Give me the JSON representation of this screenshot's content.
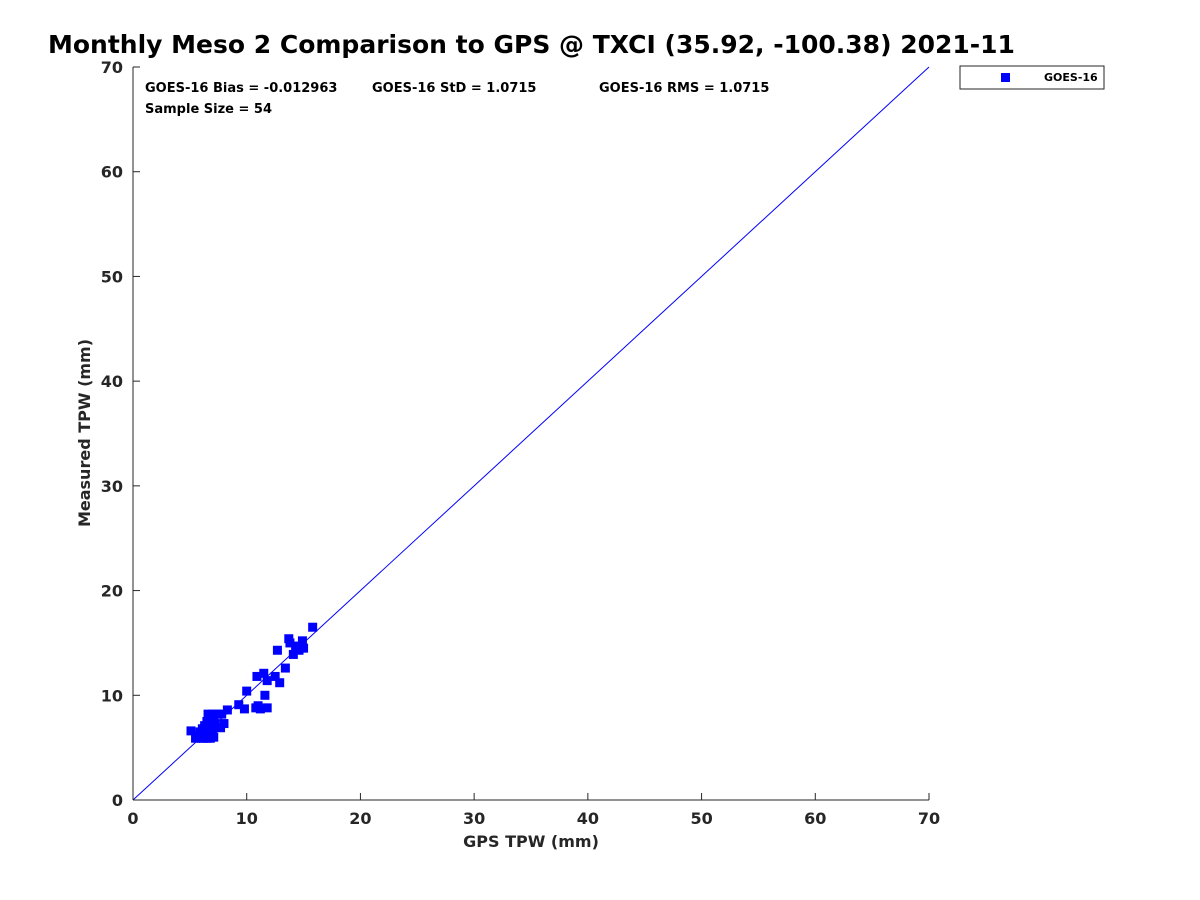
{
  "chart_data": {
    "type": "scatter",
    "title": "Monthly Meso 2 Comparison to GPS @ TXCI (35.92, -100.38) 2021-11",
    "xlabel": "GPS TPW (mm)",
    "ylabel": "Measured TPW (mm)",
    "xlim": [
      0,
      70
    ],
    "ylim": [
      0,
      70
    ],
    "xticks": [
      0,
      10,
      20,
      30,
      40,
      50,
      60,
      70
    ],
    "yticks": [
      0,
      10,
      20,
      30,
      40,
      50,
      60,
      70
    ],
    "grid": false,
    "legend_position": "outside-top-right",
    "reference_line": {
      "x": [
        0,
        70
      ],
      "y": [
        0,
        70
      ],
      "color": "#0000ff"
    },
    "annotations": {
      "bias": "GOES-16 Bias = -0.012963",
      "std": "GOES-16 StD = 1.0715",
      "rms": "GOES-16 RMS = 1.0715",
      "sample_size": "Sample Size = 54"
    },
    "series": [
      {
        "name": "GOES-16",
        "color": "#0000ff",
        "marker": "square",
        "points": [
          [
            5.1,
            6.6
          ],
          [
            5.5,
            5.9
          ],
          [
            5.7,
            6.2
          ],
          [
            5.9,
            6.5
          ],
          [
            6.0,
            5.9
          ],
          [
            6.1,
            6.8
          ],
          [
            6.2,
            6.1
          ],
          [
            6.3,
            7.1
          ],
          [
            6.4,
            6.4
          ],
          [
            6.5,
            5.9
          ],
          [
            6.5,
            7.5
          ],
          [
            6.6,
            6.7
          ],
          [
            6.6,
            8.2
          ],
          [
            6.7,
            6.2
          ],
          [
            6.8,
            7.0
          ],
          [
            6.8,
            5.9
          ],
          [
            6.9,
            7.8
          ],
          [
            7.0,
            6.5
          ],
          [
            7.0,
            8.2
          ],
          [
            7.1,
            6.0
          ],
          [
            7.2,
            7.3
          ],
          [
            7.4,
            8.2
          ],
          [
            7.7,
            6.9
          ],
          [
            7.8,
            8.2
          ],
          [
            8.0,
            7.3
          ],
          [
            8.3,
            8.6
          ],
          [
            9.3,
            9.1
          ],
          [
            9.8,
            8.7
          ],
          [
            10.0,
            10.4
          ],
          [
            10.8,
            8.8
          ],
          [
            10.9,
            11.8
          ],
          [
            11.0,
            9.0
          ],
          [
            11.2,
            8.7
          ],
          [
            11.5,
            12.1
          ],
          [
            11.6,
            10.0
          ],
          [
            11.8,
            8.8
          ],
          [
            11.8,
            11.4
          ],
          [
            12.5,
            11.8
          ],
          [
            12.7,
            14.3
          ],
          [
            12.9,
            11.2
          ],
          [
            13.4,
            12.6
          ],
          [
            13.7,
            15.4
          ],
          [
            13.8,
            15.0
          ],
          [
            14.1,
            13.9
          ],
          [
            14.3,
            14.7
          ],
          [
            14.6,
            14.3
          ],
          [
            14.8,
            14.6
          ],
          [
            14.9,
            15.2
          ],
          [
            15.0,
            14.5
          ],
          [
            15.8,
            16.5
          ],
          [
            6.4,
            6.9
          ],
          [
            6.9,
            6.3
          ],
          [
            7.1,
            7.6
          ],
          [
            6.2,
            5.9
          ]
        ]
      }
    ]
  }
}
